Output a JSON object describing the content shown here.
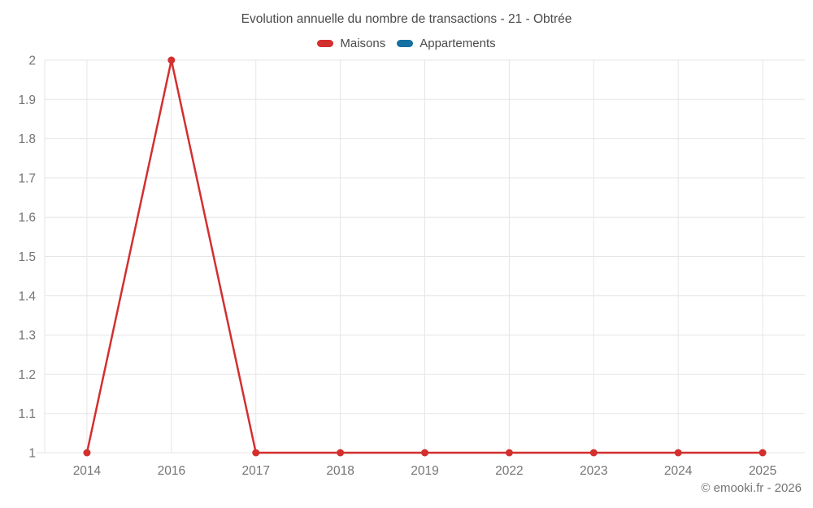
{
  "title": "Evolution annuelle du nombre de transactions - 21 - Obtrée",
  "watermark": "© emooki.fr - 2026",
  "colors": {
    "maisons": "#d32f2f",
    "appartements": "#1470a0",
    "grid": "#e6e6e6",
    "tick_text": "#757575",
    "title_text": "#4a4a4a",
    "background": "#ffffff"
  },
  "legend": {
    "items": [
      {
        "label": "Maisons",
        "color": "#d32f2f"
      },
      {
        "label": "Appartements",
        "color": "#1470a0"
      }
    ],
    "position": "top"
  },
  "chart_data": {
    "type": "line",
    "title": "Evolution annuelle du nombre de transactions - 21 - Obtrée",
    "categories": [
      "2014",
      "2016",
      "2017",
      "2018",
      "2019",
      "2022",
      "2023",
      "2024",
      "2025"
    ],
    "series": [
      {
        "name": "Maisons",
        "color": "#d32f2f",
        "values": [
          1,
          2,
          1,
          1,
          1,
          1,
          1,
          1,
          1
        ]
      },
      {
        "name": "Appartements",
        "color": "#1470a0",
        "values": []
      }
    ],
    "xlabel": "",
    "ylabel": "",
    "ylim": [
      1,
      2
    ],
    "yticks": [
      1,
      1.1,
      1.2,
      1.3,
      1.4,
      1.5,
      1.6,
      1.7,
      1.8,
      1.9,
      2
    ],
    "ytick_labels": [
      "1",
      "1.1",
      "1.2",
      "1.3",
      "1.4",
      "1.5",
      "1.6",
      "1.7",
      "1.8",
      "1.9",
      "2"
    ],
    "grid": true,
    "legend_position": "top"
  }
}
